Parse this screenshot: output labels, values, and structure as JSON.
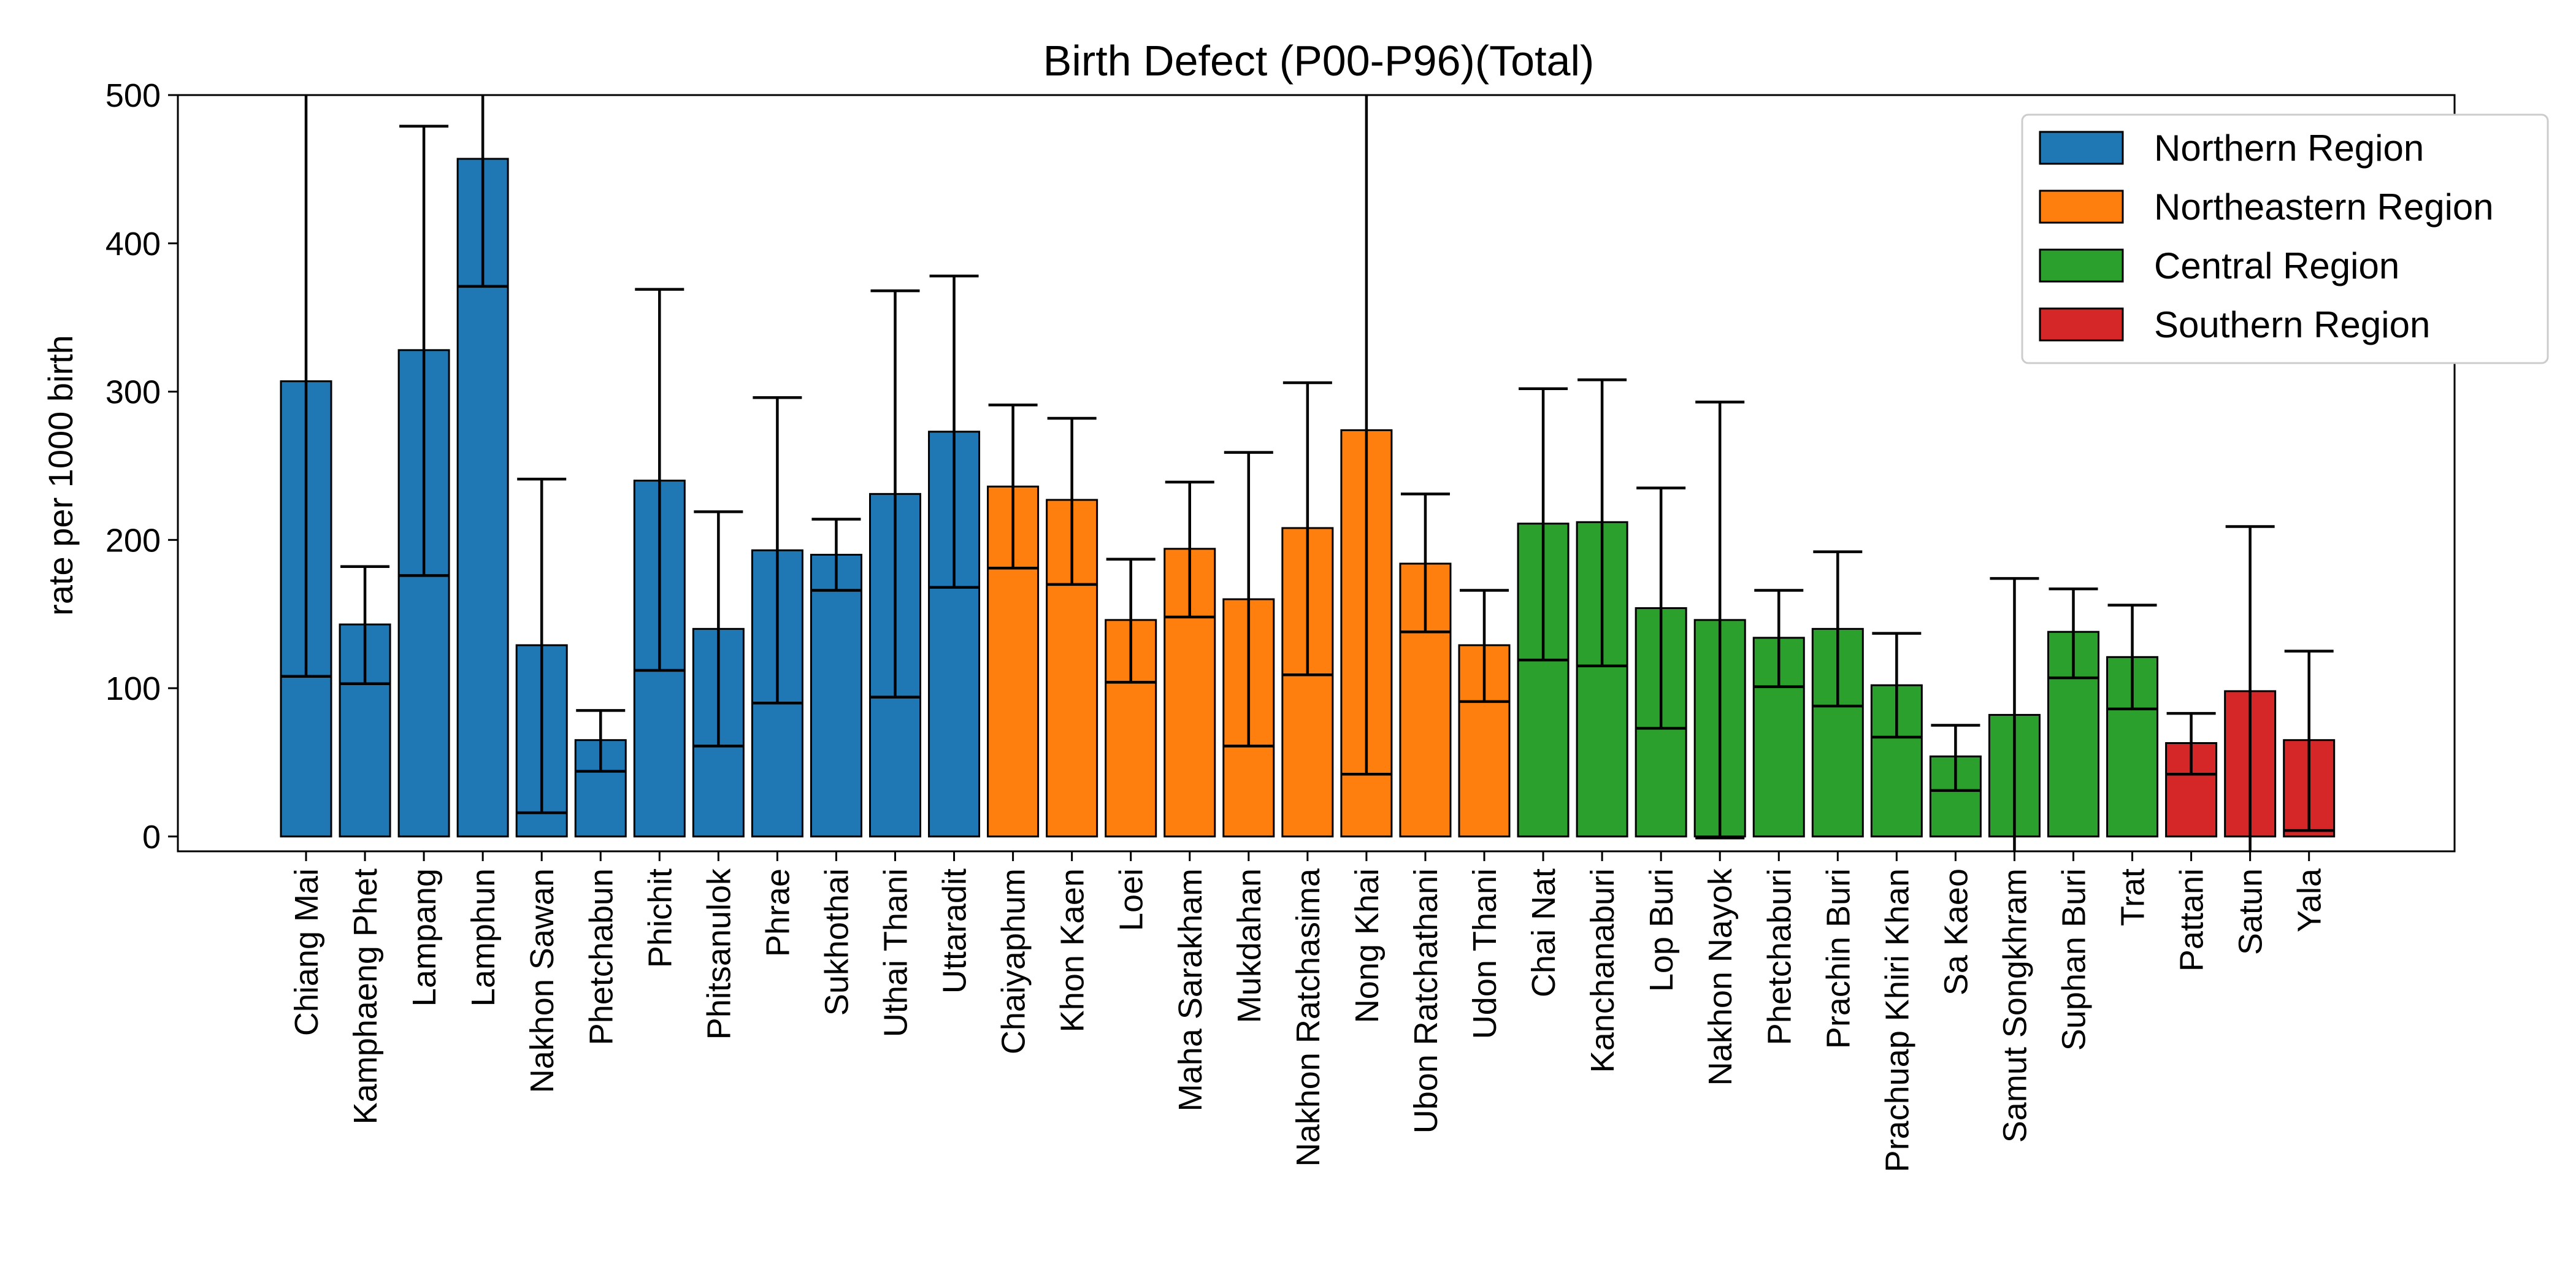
{
  "chart_data": {
    "type": "bar",
    "title": "Birth Defect (P00-P96)(Total)",
    "xlabel": "",
    "ylabel": "rate per 1000 birth",
    "ylim": [
      -10,
      500
    ],
    "yticks": [
      0,
      100,
      200,
      300,
      400,
      500
    ],
    "grid": false,
    "legend_position": "top-right",
    "legend": [
      {
        "name": "Northern Region",
        "color": "#1f77b4"
      },
      {
        "name": "Northeastern Region",
        "color": "#ff7f0e"
      },
      {
        "name": "Central Region",
        "color": "#2ca02c"
      },
      {
        "name": "Southern Region",
        "color": "#d62728"
      }
    ],
    "categories": [
      "Chiang Mai",
      "Kamphaeng Phet",
      "Lampang",
      "Lamphun",
      "Nakhon Sawan",
      "Phetchabun",
      "Phichit",
      "Phitsanulok",
      "Phrae",
      "Sukhothai",
      "Uthai Thani",
      "Uttaradit",
      "Chaiyaphum",
      "Khon Kaen",
      "Loei",
      "Maha Sarakham",
      "Mukdahan",
      "Nakhon Ratchasima",
      "Nong Khai",
      "Ubon Ratchathani",
      "Udon Thani",
      "Chai Nat",
      "Kanchanaburi",
      "Lop Buri",
      "Nakhon Nayok",
      "Phetchaburi",
      "Prachin Buri",
      "Prachuap Khiri Khan",
      "Sa Kaeo",
      "Samut Songkhram",
      "Suphan Buri",
      "Trat",
      "Pattani",
      "Satun",
      "Yala"
    ],
    "region": [
      0,
      0,
      0,
      0,
      0,
      0,
      0,
      0,
      0,
      0,
      0,
      0,
      1,
      1,
      1,
      1,
      1,
      1,
      1,
      1,
      1,
      2,
      2,
      2,
      2,
      2,
      2,
      2,
      2,
      2,
      2,
      2,
      3,
      3,
      3
    ],
    "values": [
      307,
      143,
      328,
      457,
      129,
      65,
      240,
      140,
      193,
      190,
      231,
      273,
      236,
      227,
      146,
      194,
      160,
      208,
      274,
      184,
      129,
      211,
      212,
      154,
      146,
      134,
      140,
      102,
      54,
      82,
      138,
      121,
      63,
      98,
      65
    ],
    "error_lower": [
      108,
      103,
      176,
      371,
      16,
      44,
      112,
      61,
      90,
      166,
      94,
      168,
      181,
      170,
      104,
      148,
      61,
      109,
      42,
      138,
      91,
      119,
      115,
      73,
      -1,
      101,
      88,
      67,
      31,
      -10,
      107,
      86,
      42,
      -10,
      4
    ],
    "error_upper": [
      500,
      182,
      479,
      500,
      241,
      85,
      369,
      219,
      296,
      214,
      368,
      378,
      291,
      282,
      187,
      239,
      259,
      306,
      500,
      231,
      166,
      302,
      308,
      235,
      293,
      166,
      192,
      137,
      75,
      174,
      167,
      156,
      83,
      209,
      125
    ]
  }
}
